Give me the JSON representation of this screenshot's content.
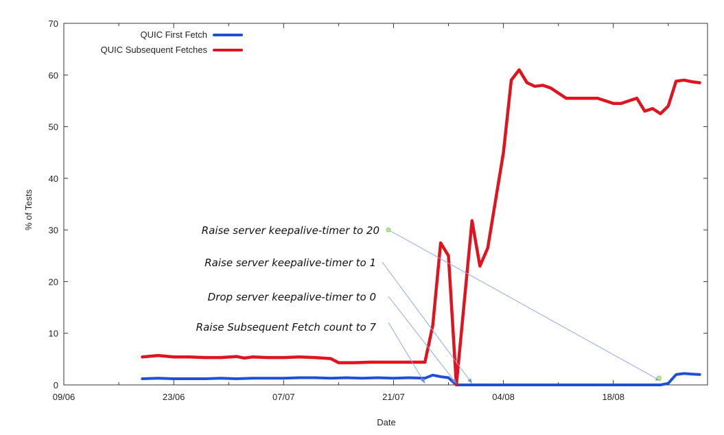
{
  "chart_data": {
    "type": "line",
    "title": "",
    "xlabel": "Date",
    "ylabel": "% of Tests",
    "xlim": [
      "2015-06-09",
      "2015-08-30"
    ],
    "ylim": [
      0,
      70
    ],
    "x_ticks": [
      {
        "date": "2015-06-09",
        "label": "09/06"
      },
      {
        "date": "2015-06-23",
        "label": "23/06"
      },
      {
        "date": "2015-07-07",
        "label": "07/07"
      },
      {
        "date": "2015-07-21",
        "label": "21/07"
      },
      {
        "date": "2015-08-04",
        "label": "04/08"
      },
      {
        "date": "2015-08-18",
        "label": "18/08"
      }
    ],
    "y_ticks": [
      0,
      10,
      20,
      30,
      40,
      50,
      60,
      70
    ],
    "legend_position": "top-left",
    "series": [
      {
        "name": "QUIC First Fetch",
        "color": "#1f4fd6",
        "points": [
          [
            "2015-06-19",
            1.2
          ],
          [
            "2015-06-21",
            1.3
          ],
          [
            "2015-06-23",
            1.2
          ],
          [
            "2015-06-25",
            1.2
          ],
          [
            "2015-06-27",
            1.2
          ],
          [
            "2015-06-29",
            1.3
          ],
          [
            "2015-07-01",
            1.2
          ],
          [
            "2015-07-03",
            1.3
          ],
          [
            "2015-07-05",
            1.3
          ],
          [
            "2015-07-07",
            1.3
          ],
          [
            "2015-07-09",
            1.4
          ],
          [
            "2015-07-11",
            1.4
          ],
          [
            "2015-07-13",
            1.3
          ],
          [
            "2015-07-15",
            1.4
          ],
          [
            "2015-07-17",
            1.3
          ],
          [
            "2015-07-19",
            1.4
          ],
          [
            "2015-07-21",
            1.3
          ],
          [
            "2015-07-23",
            1.4
          ],
          [
            "2015-07-25",
            1.3
          ],
          [
            "2015-07-26",
            1.9
          ],
          [
            "2015-07-27",
            1.6
          ],
          [
            "2015-07-28",
            1.4
          ],
          [
            "2015-07-29",
            0.0
          ],
          [
            "2015-07-31",
            0.0
          ],
          [
            "2015-08-04",
            0.0
          ],
          [
            "2015-08-10",
            0.0
          ],
          [
            "2015-08-16",
            0.0
          ],
          [
            "2015-08-22",
            0.0
          ],
          [
            "2015-08-24",
            0.0
          ],
          [
            "2015-08-25",
            0.3
          ],
          [
            "2015-08-26",
            2.0
          ],
          [
            "2015-08-27",
            2.2
          ],
          [
            "2015-08-28",
            2.1
          ],
          [
            "2015-08-29",
            2.0
          ]
        ]
      },
      {
        "name": "QUIC Subsequent Fetches",
        "color": "#e0141e",
        "points": [
          [
            "2015-06-19",
            5.4
          ],
          [
            "2015-06-21",
            5.7
          ],
          [
            "2015-06-23",
            5.4
          ],
          [
            "2015-06-25",
            5.4
          ],
          [
            "2015-06-27",
            5.3
          ],
          [
            "2015-06-29",
            5.3
          ],
          [
            "2015-07-01",
            5.5
          ],
          [
            "2015-07-02",
            5.2
          ],
          [
            "2015-07-03",
            5.4
          ],
          [
            "2015-07-05",
            5.3
          ],
          [
            "2015-07-07",
            5.3
          ],
          [
            "2015-07-09",
            5.4
          ],
          [
            "2015-07-11",
            5.3
          ],
          [
            "2015-07-13",
            5.1
          ],
          [
            "2015-07-14",
            4.3
          ],
          [
            "2015-07-16",
            4.3
          ],
          [
            "2015-07-18",
            4.4
          ],
          [
            "2015-07-21",
            4.4
          ],
          [
            "2015-07-24",
            4.4
          ],
          [
            "2015-07-25",
            4.4
          ],
          [
            "2015-07-26",
            11.5
          ],
          [
            "2015-07-27",
            27.5
          ],
          [
            "2015-07-28",
            25.0
          ],
          [
            "2015-07-29",
            0.0
          ],
          [
            "2015-07-31",
            31.8
          ],
          [
            "2015-08-01",
            23.0
          ],
          [
            "2015-08-02",
            26.5
          ],
          [
            "2015-08-04",
            45.0
          ],
          [
            "2015-08-05",
            59.0
          ],
          [
            "2015-08-06",
            61.0
          ],
          [
            "2015-08-07",
            58.5
          ],
          [
            "2015-08-08",
            57.8
          ],
          [
            "2015-08-09",
            58.0
          ],
          [
            "2015-08-10",
            57.5
          ],
          [
            "2015-08-12",
            55.5
          ],
          [
            "2015-08-14",
            55.5
          ],
          [
            "2015-08-16",
            55.5
          ],
          [
            "2015-08-18",
            54.5
          ],
          [
            "2015-08-19",
            54.5
          ],
          [
            "2015-08-20",
            55.0
          ],
          [
            "2015-08-21",
            55.5
          ],
          [
            "2015-08-22",
            53.0
          ],
          [
            "2015-08-23",
            53.5
          ],
          [
            "2015-08-24",
            52.5
          ],
          [
            "2015-08-25",
            54.0
          ],
          [
            "2015-08-26",
            58.8
          ],
          [
            "2015-08-27",
            59.0
          ],
          [
            "2015-08-28",
            58.7
          ],
          [
            "2015-08-29",
            58.5
          ]
        ]
      }
    ],
    "annotations": [
      {
        "text": "Raise server keepalive-timer to 20",
        "points_to": [
          "2015-08-24",
          0.8
        ]
      },
      {
        "text": "Raise server keepalive-timer to 1",
        "points_to": [
          "2015-07-31",
          0.3
        ]
      },
      {
        "text": "Drop server keepalive-timer to 0",
        "points_to": [
          "2015-07-29",
          0.3
        ]
      },
      {
        "text": "Raise Subsequent Fetch count to 7",
        "points_to": [
          "2015-07-25",
          0.3
        ]
      }
    ]
  }
}
